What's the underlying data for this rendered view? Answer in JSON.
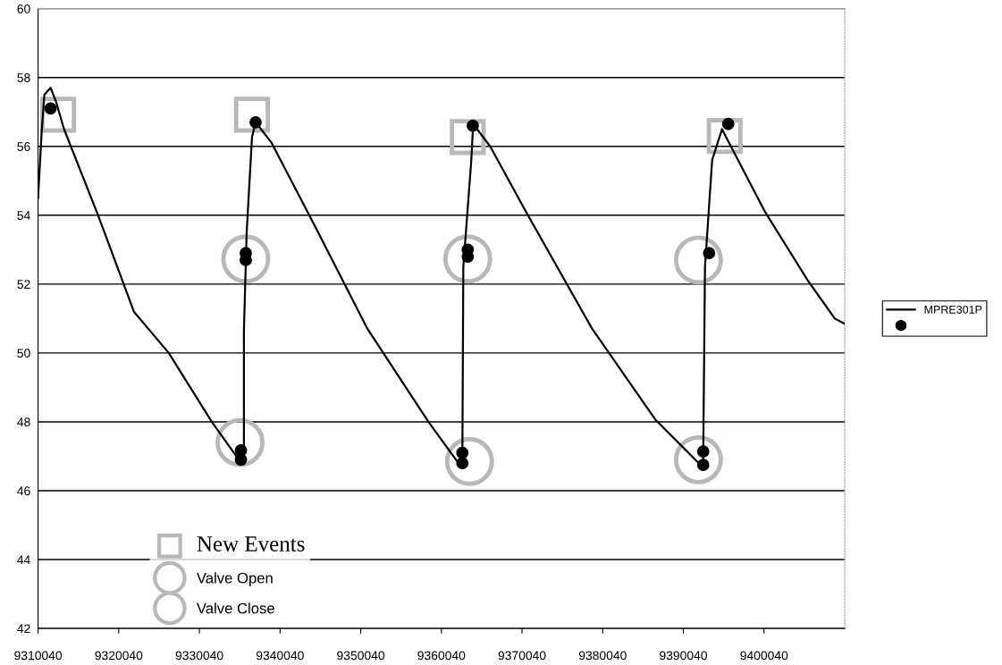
{
  "chart_data": {
    "type": "scatter",
    "xlim": [
      9310040,
      9410040
    ],
    "xticks": [
      9310040,
      9320040,
      9330040,
      9340040,
      9350040,
      9360040,
      9370040,
      9380040,
      9390040,
      9400040
    ],
    "ylim": [
      42,
      60
    ],
    "yticks": [
      42,
      44,
      46,
      48,
      50,
      52,
      54,
      56,
      58,
      60
    ],
    "grid": "y",
    "legend": "right",
    "series": [
      {
        "name": "MPRE301P",
        "type": "line",
        "color": "#000000",
        "marker": "none",
        "x": [
          9310040,
          9310480,
          9310820,
          9311590,
          9312260,
          9313260,
          9317480,
          9321920,
          9326240,
          9331570,
          9335080,
          9335560,
          9335560,
          9335900,
          9336560,
          9337010,
          9339000,
          9344550,
          9350880,
          9358430,
          9362310,
          9362640,
          9362760,
          9363750,
          9363980,
          9366090,
          9370530,
          9378740,
          9386620,
          9391950,
          9392500,
          9392720,
          9393610,
          9394830,
          9396830,
          9400160,
          9405480,
          9408810,
          9410030
        ],
        "values": [
          54.5,
          56.4,
          57.5,
          57.7,
          57.3,
          56.5,
          54.0,
          51.2,
          50.0,
          48.0,
          46.85,
          47.0,
          50.65,
          53.5,
          56.26,
          56.7,
          56.1,
          53.6,
          50.7,
          48.0,
          46.75,
          46.9,
          52.5,
          55.6,
          56.65,
          56.0,
          54.1,
          50.7,
          48.05,
          46.8,
          46.9,
          52.5,
          55.6,
          56.5,
          55.6,
          54.1,
          52.1,
          51.0,
          50.85
        ]
      },
      {
        "color": "#000000",
        "marker": "circle",
        "x": [
          9311590,
          9335190,
          9335190,
          9335790,
          9335790,
          9337010,
          9362640,
          9362640,
          9363310,
          9363310,
          9363930,
          9392500,
          9392500,
          9393230,
          9395600
        ],
        "values": [
          57.1,
          47.17,
          46.9,
          52.9,
          52.7,
          56.7,
          47.1,
          46.8,
          53.0,
          52.8,
          56.6,
          47.14,
          46.75,
          52.9,
          56.65
        ]
      },
      {
        "name": "New Events",
        "color": "#b8b8b8",
        "marker": "square",
        "x": [
          9312530,
          9336560,
          9363310,
          9395160
        ],
        "values": [
          56.92,
          56.92,
          56.27,
          56.3
        ]
      },
      {
        "name": "Valve Open",
        "color": "#b8b8b8",
        "marker": "circle",
        "x": [
          9335790,
          9363310,
          9391910
        ],
        "values": [
          52.73,
          52.73,
          52.7
        ]
      },
      {
        "name": "Valve Close",
        "color": "#b8b8b8",
        "marker": "circle",
        "x": [
          9335080,
          9363530,
          9391910
        ],
        "values": [
          47.4,
          46.85,
          46.9
        ]
      }
    ]
  }
}
